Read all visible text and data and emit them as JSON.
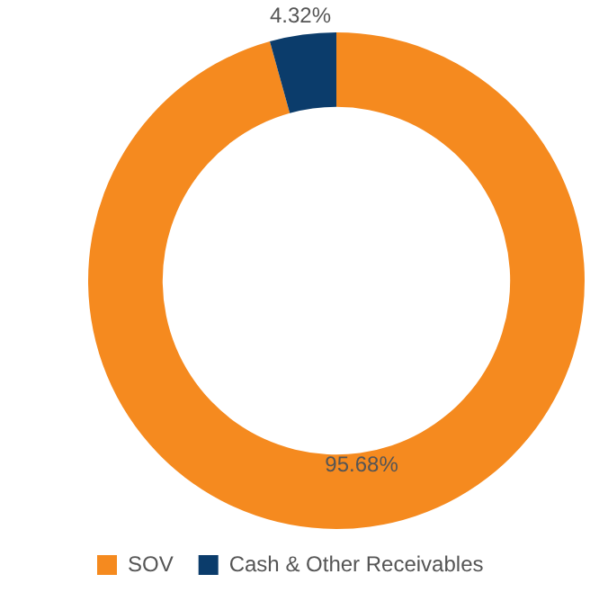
{
  "chart_data": {
    "type": "donut",
    "categories": [
      "SOV",
      "Cash & Other Receivables"
    ],
    "values": [
      95.68,
      4.32
    ],
    "colors": [
      "#f58a1f",
      "#0b3c6b"
    ],
    "value_labels": [
      "95.68%",
      "4.32%"
    ],
    "legend": "bottom"
  }
}
